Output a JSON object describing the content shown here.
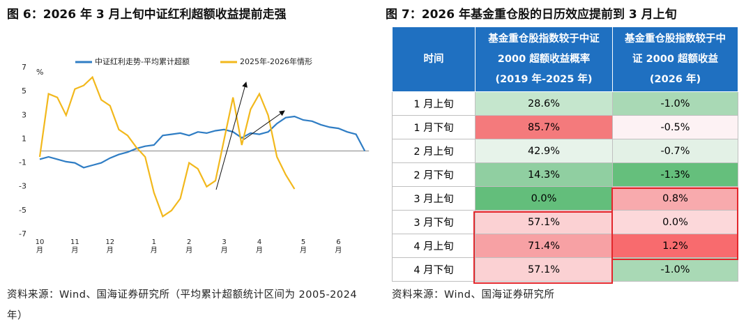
{
  "chart_data": {
    "type": "line",
    "title": "图 6：2026 年 3 月上旬中证红利超额收益提前走强",
    "y_label": "%",
    "categories": [
      "10月",
      null,
      null,
      null,
      "11月",
      null,
      null,
      null,
      "12月",
      null,
      null,
      null,
      null,
      "1月",
      null,
      null,
      null,
      "2月",
      null,
      null,
      null,
      "3月",
      null,
      null,
      null,
      "4月",
      null,
      null,
      null,
      null,
      "5月",
      null,
      null,
      null,
      "6月",
      null,
      null,
      null
    ],
    "series": [
      {
        "name": "中证红利走势-平均累计超额",
        "color": "#2f7dc4",
        "values": [
          -0.7,
          -0.5,
          -0.7,
          -0.9,
          -1.0,
          -1.4,
          -1.2,
          -1.0,
          -0.6,
          -0.3,
          -0.1,
          0.2,
          0.4,
          0.5,
          1.3,
          1.4,
          1.5,
          1.3,
          1.6,
          1.5,
          1.7,
          1.8,
          1.6,
          1.1,
          1.5,
          1.4,
          1.6,
          2.3,
          2.8,
          2.9,
          2.6,
          2.5,
          2.2,
          2.0,
          1.9,
          1.6,
          1.4,
          0.0
        ]
      },
      {
        "name": "2025年-2026年情形",
        "color": "#f2b81c",
        "values": [
          -0.5,
          4.8,
          4.5,
          3.0,
          5.2,
          5.5,
          6.2,
          4.3,
          3.8,
          1.8,
          1.3,
          0.3,
          -0.5,
          -3.5,
          -5.5,
          -5.0,
          -4.0,
          -1.0,
          -1.5,
          -3.0,
          -2.5,
          1.0,
          4.5,
          0.5,
          3.5,
          4.8,
          3.0,
          -0.5,
          -2.0,
          -3.2,
          null,
          null,
          null,
          null,
          null,
          null,
          null,
          null
        ]
      }
    ],
    "ylim": [
      -7,
      7
    ],
    "yticks": [
      7,
      5,
      3,
      1,
      -1,
      -3,
      -5,
      -7
    ]
  },
  "notes": {
    "left": "资料来源：Wind、国海证券研究所（平均累计超额统计区间为 2005-2024 年）",
    "right": "资料来源：Wind、国海证券研究所"
  },
  "table": {
    "title": "图 7：2026 年基金重仓股的日历效应提前到 3 月上旬",
    "header": [
      "时间",
      "基金重仓股指数较于中证 2000 超额收益概率 (2019 年-2025 年)",
      "基金重仓股指数较于中证 2000 超额收益 (2026 年)"
    ],
    "rows": [
      [
        "1 月上旬",
        "28.6%",
        "-1.0%"
      ],
      [
        "1 月下旬",
        "85.7%",
        "-0.5%"
      ],
      [
        "2 月上旬",
        "42.9%",
        "-0.7%"
      ],
      [
        "2 月下旬",
        "14.3%",
        "-1.3%"
      ],
      [
        "3 月上旬",
        "0.0%",
        "0.8%"
      ],
      [
        "3 月下旬",
        "57.1%",
        "0.0%"
      ],
      [
        "4 月上旬",
        "71.4%",
        "1.2%"
      ],
      [
        "4 月下旬",
        "57.1%",
        "-1.0%"
      ]
    ]
  }
}
